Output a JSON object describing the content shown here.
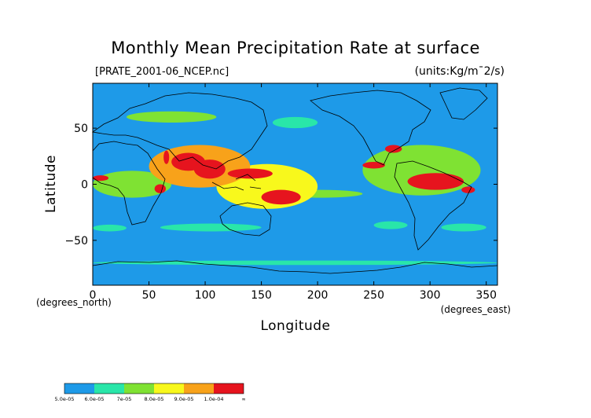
{
  "chart_data": {
    "type": "heatmap",
    "title": "Monthly Mean Precipitation Rate at surface",
    "subtitle": "[PRATE_2001-06_NCEP.nc]",
    "units": "(units:Kg/m¯2/s)",
    "xlabel": "Longitude",
    "ylabel": "Latitude",
    "x_unit_note": "(degrees_east)",
    "y_unit_note": "(degrees_north)",
    "xlim": [
      0,
      360
    ],
    "ylim": [
      -90,
      90
    ],
    "xticks": [
      0,
      50,
      100,
      150,
      200,
      250,
      300,
      350
    ],
    "yticks": [
      50,
      0,
      -50
    ],
    "background_level_color": "#1e9ae8",
    "color_levels": [
      {
        "label": "5.0e-05",
        "color": "#1e9ae8"
      },
      {
        "label": "6.0e-05",
        "color": "#29e6a9"
      },
      {
        "label": "7e-05",
        "color": "#7fe233"
      },
      {
        "label": "8.0e-05",
        "color": "#f8f81c"
      },
      {
        "label": "9.0e-05",
        "color": "#f8a21a"
      },
      {
        "label": "1.0e-04",
        "color": "#e6141e"
      },
      {
        "label": "∞",
        "color": "#e6141e"
      }
    ],
    "regions": [
      {
        "lon": [
          63,
          68
        ],
        "lat": [
          18,
          30
        ],
        "level": 5
      },
      {
        "lon": [
          70,
          100
        ],
        "lat": [
          12,
          28
        ],
        "level": 5
      },
      {
        "lon": [
          90,
          118
        ],
        "lat": [
          5,
          22
        ],
        "level": 5
      },
      {
        "lon": [
          120,
          160
        ],
        "lat": [
          5,
          14
        ],
        "level": 5
      },
      {
        "lon": [
          150,
          185
        ],
        "lat": [
          -18,
          -5
        ],
        "level": 5
      },
      {
        "lon": [
          0,
          14
        ],
        "lat": [
          3,
          8
        ],
        "level": 5
      },
      {
        "lon": [
          55,
          65
        ],
        "lat": [
          -8,
          0
        ],
        "level": 5
      },
      {
        "lon": [
          260,
          275
        ],
        "lat": [
          28,
          35
        ],
        "level": 5
      },
      {
        "lon": [
          280,
          330
        ],
        "lat": [
          -5,
          10
        ],
        "level": 5
      },
      {
        "lon": [
          328,
          340
        ],
        "lat": [
          -8,
          -2
        ],
        "level": 5
      },
      {
        "lon": [
          240,
          260
        ],
        "lat": [
          14,
          20
        ],
        "level": 5
      },
      {
        "lon": [
          50,
          140
        ],
        "lat": [
          -3,
          35
        ],
        "level": 4
      },
      {
        "lon": [
          110,
          200
        ],
        "lat": [
          -22,
          18
        ],
        "level": 3
      },
      {
        "lon": [
          0,
          70
        ],
        "lat": [
          -12,
          12
        ],
        "level": 2
      },
      {
        "lon": [
          165,
          240
        ],
        "lat": [
          -12,
          -5
        ],
        "level": 2
      },
      {
        "lon": [
          240,
          345
        ],
        "lat": [
          -10,
          35
        ],
        "level": 2
      },
      {
        "lon": [
          60,
          150
        ],
        "lat": [
          -42,
          -35
        ],
        "level": 1
      },
      {
        "lon": [
          0,
          30
        ],
        "lat": [
          -42,
          -36
        ],
        "level": 1
      },
      {
        "lon": [
          250,
          280
        ],
        "lat": [
          -40,
          -33
        ],
        "level": 1
      },
      {
        "lon": [
          310,
          350
        ],
        "lat": [
          -42,
          -35
        ],
        "level": 1
      },
      {
        "lon": [
          30,
          110
        ],
        "lat": [
          55,
          65
        ],
        "level": 2
      },
      {
        "lon": [
          160,
          200
        ],
        "lat": [
          50,
          60
        ],
        "level": 1
      },
      {
        "lon": [
          0,
          360
        ],
        "lat": [
          -72,
          -68
        ],
        "level": 1
      }
    ]
  }
}
